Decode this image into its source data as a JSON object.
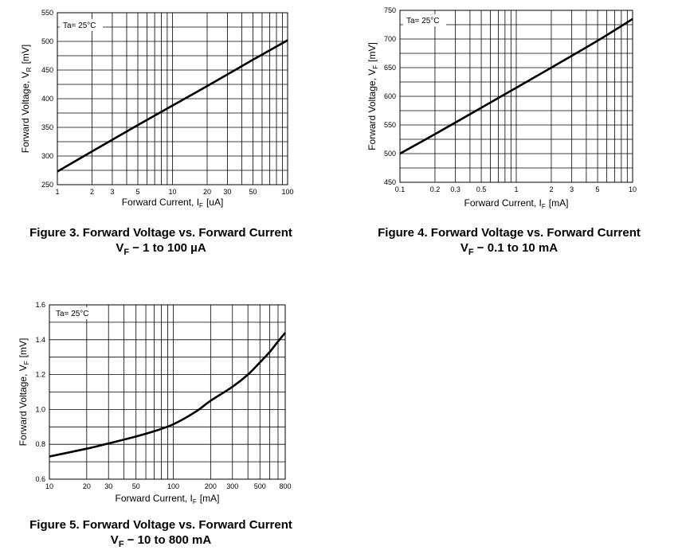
{
  "chart_data": [
    {
      "type": "line",
      "id": "fig3",
      "annotation": "Ta= 25°C",
      "xlabel_pre": "Forward Current, I",
      "xlabel_sub": "F",
      "xlabel_post": "[uA]",
      "ylabel_pre": "Forward Voltage, V",
      "ylabel_sub": "R",
      "ylabel_post": "[mV]",
      "xscale": "log",
      "xlim": [
        1,
        100
      ],
      "ylim": [
        250,
        550
      ],
      "xticks": [
        1,
        2,
        3,
        5,
        10,
        20,
        30,
        50,
        100
      ],
      "xtick_labels": [
        "1",
        "2",
        "3",
        "5",
        "10",
        "20",
        "30",
        "50",
        "100"
      ],
      "yticks": [
        250,
        300,
        350,
        400,
        450,
        500,
        550
      ],
      "ytick_labels": [
        "250",
        "300",
        "350",
        "400",
        "450",
        "500",
        "550"
      ],
      "grid": true,
      "series": [
        {
          "x": [
            1,
            2,
            5,
            10,
            20,
            50,
            100
          ],
          "y": [
            273,
            308,
            354,
            388,
            422,
            468,
            502
          ]
        }
      ],
      "caption_title": "Figure 3. Forward Voltage vs. Forward Current",
      "caption_v": "V",
      "caption_sub": "F",
      "caption_range": " − 1 to 100 µA"
    },
    {
      "type": "line",
      "id": "fig4",
      "annotation": "Ta= 25°C",
      "xlabel_pre": "Forward Current, I",
      "xlabel_sub": "F",
      "xlabel_post": "[mA]",
      "ylabel_pre": "Forward Voltage, V",
      "ylabel_sub": "F",
      "ylabel_post": "[mV]",
      "xscale": "log",
      "xlim": [
        0.1,
        10
      ],
      "ylim": [
        450,
        750
      ],
      "xticks": [
        0.1,
        0.2,
        0.3,
        0.5,
        1,
        2,
        3,
        5,
        10
      ],
      "xtick_labels": [
        "0.1",
        "0.2",
        "0.3",
        "0.5",
        "1",
        "2",
        "3",
        "5",
        "10"
      ],
      "yticks": [
        450,
        500,
        550,
        600,
        650,
        700,
        750
      ],
      "ytick_labels": [
        "450",
        "500",
        "550",
        "600",
        "650",
        "700",
        "750"
      ],
      "grid": true,
      "series": [
        {
          "x": [
            0.1,
            0.2,
            0.5,
            1,
            2,
            5,
            10
          ],
          "y": [
            500,
            534,
            580,
            615,
            650,
            697,
            735
          ]
        }
      ],
      "caption_title": "Figure 4. Forward Voltage vs. Forward Current",
      "caption_v": "V",
      "caption_sub": "F",
      "caption_range": " − 0.1 to 10 mA"
    },
    {
      "type": "line",
      "id": "fig5",
      "annotation": "Ta= 25°C",
      "xlabel_pre": "Forward Current, I",
      "xlabel_sub": "F",
      "xlabel_post": "[mA]",
      "ylabel_pre": "Forward Voltage, V",
      "ylabel_sub": "F",
      "ylabel_post": "[mV]",
      "xscale": "log",
      "xlim": [
        10,
        800
      ],
      "ylim": [
        0.6,
        1.6
      ],
      "xticks": [
        10,
        20,
        30,
        50,
        100,
        200,
        300,
        500,
        800
      ],
      "xtick_labels": [
        "10",
        "20",
        "30",
        "50",
        "100",
        "200",
        "300",
        "500",
        "800"
      ],
      "yticks": [
        0.6,
        0.8,
        1.0,
        1.2,
        1.4,
        1.6
      ],
      "ytick_labels": [
        "0.6",
        "0.8",
        "1.0",
        "1.2",
        "1.4",
        "1.6"
      ],
      "grid": true,
      "series": [
        {
          "x": [
            10,
            20,
            30,
            50,
            70,
            100,
            150,
            200,
            300,
            400,
            500,
            600,
            700,
            800
          ],
          "y": [
            0.73,
            0.775,
            0.805,
            0.845,
            0.875,
            0.915,
            0.985,
            1.05,
            1.13,
            1.2,
            1.27,
            1.33,
            1.39,
            1.44
          ]
        }
      ],
      "caption_title": "Figure 5. Forward Voltage vs. Forward Current",
      "caption_v": "V",
      "caption_sub": "F",
      "caption_range": " − 10 to 800 mA"
    }
  ]
}
